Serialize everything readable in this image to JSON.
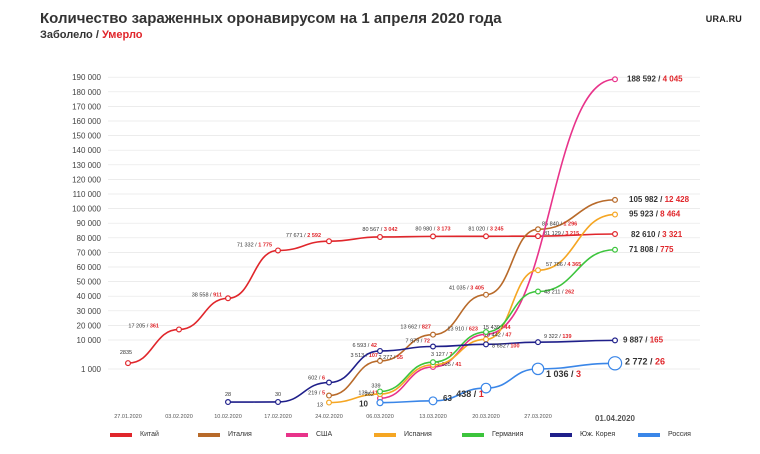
{
  "header": {
    "title": "Количество зараженных оронавирусом на 1 апреля 2020 года",
    "subtitle_cases": "Заболело",
    "subtitle_sep": "/",
    "subtitle_deaths": "Умерло",
    "brand": "URA.RU"
  },
  "chart_data": {
    "type": "line",
    "title": "Количество зараженных оронавирусом на 1 апреля 2020 года",
    "y_ticks": [
      "190 000",
      "180 000",
      "170 000",
      "160 000",
      "150 000",
      "140 000",
      "130 000",
      "120 000",
      "110 000",
      "100 000",
      "90 000",
      "80 000",
      "70 000",
      "60 000",
      "50 000",
      "40 000",
      "30 000",
      "20 000",
      "10 000",
      "1 000"
    ],
    "x_ticks": [
      "27.01.2020",
      "03.02.2020",
      "10.02.2020",
      "17.02.2020",
      "24.02.2020",
      "06.03.2020",
      "13.03.2020",
      "20.03.2020",
      "27.03.2020",
      "01.04.2020"
    ],
    "legend_position": "bottom",
    "series": [
      {
        "name": "Китай",
        "color": "#e0262b",
        "points": [
          {
            "x": "27.01.2020",
            "cases": 2835,
            "deaths": null,
            "label": "2835"
          },
          {
            "x": "03.02.2020",
            "cases": 17205,
            "deaths": 361,
            "label": "17 205 / 361"
          },
          {
            "x": "10.02.2020",
            "cases": 38558,
            "deaths": 911,
            "label": "38 558 / 911"
          },
          {
            "x": "17.02.2020",
            "cases": 71332,
            "deaths": 1775,
            "label": "71 332 / 1 775"
          },
          {
            "x": "24.02.2020",
            "cases": 77671,
            "deaths": 2592,
            "label": "77 671 / 2 592"
          },
          {
            "x": "06.03.2020",
            "cases": 80567,
            "deaths": 3042,
            "label": "80 567 / 3 042"
          },
          {
            "x": "13.03.2020",
            "cases": 80980,
            "deaths": 3173,
            "label": "80 980 / 3 173"
          },
          {
            "x": "20.03.2020",
            "cases": 81020,
            "deaths": 3245,
            "label": "81 020 / 3 245"
          },
          {
            "x": "27.03.2020",
            "cases": 81129,
            "deaths": 3215,
            "label": "81 129 / 3 215"
          },
          {
            "x": "01.04.2020",
            "cases": 82610,
            "deaths": 3321,
            "label": "82 610 / 3 321"
          }
        ]
      },
      {
        "name": "Италия",
        "color": "#b86a2a",
        "points": [
          {
            "x": "24.02.2020",
            "cases": 219,
            "deaths": 5,
            "label": "219 / 5"
          },
          {
            "x": "06.03.2020",
            "cases": 3513,
            "deaths": 107,
            "label": "3 513 / 107"
          },
          {
            "x": "13.03.2020",
            "cases": 13662,
            "deaths": 827,
            "label": "13 662 / 827"
          },
          {
            "x": "20.03.2020",
            "cases": 41035,
            "deaths": 3405,
            "label": "41 035 / 3 405"
          },
          {
            "x": "27.03.2020",
            "cases": 85840,
            "deaths": 1296,
            "label": "85 840 / 1 296"
          },
          {
            "x": "01.04.2020",
            "cases": 105982,
            "deaths": 12428,
            "label": "105 982 / 12 428"
          }
        ]
      },
      {
        "name": "США",
        "color": "#e8338a",
        "points": [
          {
            "x": "06.03.2020",
            "cases": 139,
            "deaths": 11,
            "label": "139 / 11"
          },
          {
            "x": "13.03.2020",
            "cases": 1635,
            "deaths": 41,
            "label": "1 635 / 41"
          },
          {
            "x": "20.03.2020",
            "cases": 13910,
            "deaths": 623,
            "label": "13 910 / 623"
          },
          {
            "x": "01.04.2020",
            "cases": 188592,
            "deaths": 4045,
            "label": "188 592 / 4 045"
          }
        ]
      },
      {
        "name": "Испания",
        "color": "#f5a623",
        "points": [
          {
            "x": "24.02.2020",
            "cases": 13,
            "deaths": null,
            "label": "13"
          },
          {
            "x": "06.03.2020",
            "cases": 262,
            "deaths": null,
            "label": "262"
          },
          {
            "x": "13.03.2020",
            "cases": 2277,
            "deaths": 55,
            "label": "2 277 / 55"
          },
          {
            "x": "20.03.2020",
            "cases": 10442,
            "deaths": 47,
            "label": "10 442 / 47"
          },
          {
            "x": "27.03.2020",
            "cases": 57786,
            "deaths": 4365,
            "label": "57 786 / 4 365"
          },
          {
            "x": "01.04.2020",
            "cases": 95923,
            "deaths": 8464,
            "label": "95 923 / 8 464"
          }
        ]
      },
      {
        "name": "Германия",
        "color": "#3cc43c",
        "points": [
          {
            "x": "06.03.2020",
            "cases": 339,
            "deaths": null,
            "label": "339"
          },
          {
            "x": "13.03.2020",
            "cases": 3127,
            "deaths": 7,
            "label": "3 127 / 7"
          },
          {
            "x": "20.03.2020",
            "cases": 15439,
            "deaths": 44,
            "label": "15 439 / 44"
          },
          {
            "x": "27.03.2020",
            "cases": 43211,
            "deaths": 262,
            "label": "43 211 / 262"
          },
          {
            "x": "01.04.2020",
            "cases": 71808,
            "deaths": 775,
            "label": "71 808 / 775"
          }
        ]
      },
      {
        "name": "Юж. Корея",
        "color": "#1f1f8a",
        "points": [
          {
            "x": "10.02.2020",
            "cases": 28,
            "deaths": null,
            "label": "28"
          },
          {
            "x": "17.02.2020",
            "cases": 30,
            "deaths": null,
            "label": "30"
          },
          {
            "x": "24.02.2020",
            "cases": 602,
            "deaths": 6,
            "label": "602 / 6"
          },
          {
            "x": "06.03.2020",
            "cases": 6593,
            "deaths": 42,
            "label": "6 593 / 42"
          },
          {
            "x": "13.03.2020",
            "cases": 7979,
            "deaths": 72,
            "label": "7 979 / 72"
          },
          {
            "x": "20.03.2020",
            "cases": 8652,
            "deaths": 100,
            "label": "8 652 / 100"
          },
          {
            "x": "27.03.2020",
            "cases": 9322,
            "deaths": 139,
            "label": "9 322 / 139"
          },
          {
            "x": "01.04.2020",
            "cases": 9887,
            "deaths": 165,
            "label": "9 887 / 165"
          }
        ]
      },
      {
        "name": "Россия",
        "color": "#3a86e8",
        "points": [
          {
            "x": "06.03.2020",
            "cases": 10,
            "deaths": null,
            "label": "10"
          },
          {
            "x": "13.03.2020",
            "cases": 63,
            "deaths": null,
            "label": "63"
          },
          {
            "x": "20.03.2020",
            "cases": 438,
            "deaths": 1,
            "label": "438 / 1"
          },
          {
            "x": "27.03.2020",
            "cases": 1036,
            "deaths": 3,
            "label": "1 036 / 3"
          },
          {
            "x": "01.04.2020",
            "cases": 2772,
            "deaths": 26,
            "label": "2 772 / 26"
          }
        ]
      }
    ]
  }
}
